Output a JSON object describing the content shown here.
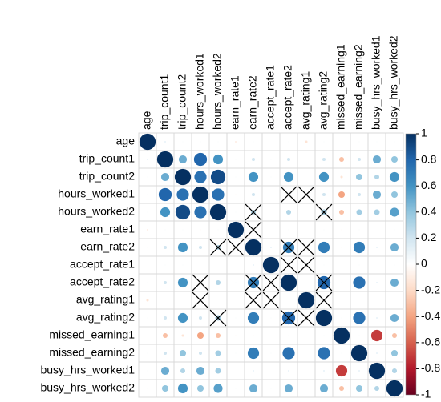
{
  "chart_data": {
    "type": "correlation",
    "labels": [
      "age",
      "trip_count1",
      "trip_count2",
      "hours_worked1",
      "hours_worked2",
      "earn_rate1",
      "earn_rate2",
      "accept_rate1",
      "accept_rate2",
      "avg_rating1",
      "avg_rating2",
      "missed_earning1",
      "missed_earning2",
      "busy_hrs_worked1",
      "busy_hrs_worked2"
    ],
    "matrix": [
      [
        1,
        0.1,
        0.05,
        0.05,
        0.05,
        -0.1,
        0.05,
        0.02,
        0.05,
        -0.15,
        0.05,
        0.02,
        0.05,
        0.05,
        0.05
      ],
      [
        0.1,
        1,
        0.5,
        0.8,
        0.6,
        0.05,
        0.2,
        0.05,
        0.2,
        0.02,
        0.2,
        -0.3,
        0.2,
        0.5,
        0.4
      ],
      [
        0.05,
        0.5,
        1,
        0.75,
        0.9,
        0.05,
        0.6,
        0.05,
        0.6,
        0.02,
        0.6,
        -0.15,
        0.4,
        0.3,
        0.6
      ],
      [
        0.05,
        0.8,
        0.75,
        1,
        0.75,
        -0.05,
        0.2,
        0.02,
        0.05,
        0.05,
        0.2,
        -0.4,
        0.2,
        0.5,
        0.4
      ],
      [
        0.05,
        0.6,
        0.9,
        0.75,
        1,
        0.05,
        0.3,
        0.02,
        0.3,
        0.02,
        0.35,
        -0.3,
        0.35,
        0.35,
        0.55
      ],
      [
        -0.1,
        0.05,
        0.05,
        -0.05,
        0.05,
        1,
        0.1,
        0.02,
        0.05,
        0.02,
        0.05,
        -0.05,
        0.05,
        0.02,
        0.05
      ],
      [
        0.05,
        0.2,
        0.6,
        0.2,
        0.3,
        0.1,
        1,
        0.1,
        0.7,
        0.02,
        0.7,
        -0.05,
        0.7,
        0.1,
        0.5
      ],
      [
        0.02,
        0.05,
        0.05,
        0.02,
        0.02,
        0.02,
        0.1,
        1,
        0.05,
        0.02,
        0.05,
        0.02,
        0.05,
        0.02,
        0.05
      ],
      [
        0.05,
        0.2,
        0.6,
        0.05,
        0.3,
        0.05,
        0.7,
        0.05,
        1,
        0.02,
        0.8,
        0.05,
        0.75,
        0.1,
        0.5
      ],
      [
        -0.15,
        0.02,
        0.02,
        0.05,
        0.02,
        0.02,
        0.02,
        0.02,
        0.02,
        1,
        0.05,
        0.02,
        0.02,
        0.02,
        0.02
      ],
      [
        0.05,
        0.2,
        0.6,
        0.2,
        0.35,
        0.05,
        0.7,
        0.05,
        0.8,
        0.05,
        1,
        0.05,
        0.75,
        0.1,
        0.5
      ],
      [
        0.02,
        -0.3,
        -0.15,
        -0.4,
        -0.3,
        -0.05,
        -0.05,
        0.02,
        0.05,
        0.02,
        0.05,
        1,
        0.05,
        -0.7,
        -0.3
      ],
      [
        0.05,
        0.2,
        0.4,
        0.2,
        0.35,
        0.05,
        0.7,
        0.05,
        0.75,
        0.02,
        0.75,
        0.05,
        1,
        0.1,
        0.4
      ],
      [
        0.05,
        0.5,
        0.3,
        0.5,
        0.35,
        0.02,
        0.1,
        0.02,
        0.1,
        0.02,
        0.1,
        -0.7,
        0.1,
        1,
        0.3
      ],
      [
        0.05,
        0.4,
        0.6,
        0.4,
        0.55,
        0.05,
        0.5,
        0.05,
        0.5,
        0.02,
        0.5,
        -0.3,
        0.4,
        0.3,
        1
      ]
    ],
    "insignificant": [
      [
        3,
        8
      ],
      [
        3,
        9
      ],
      [
        4,
        6
      ],
      [
        4,
        10
      ],
      [
        5,
        6
      ],
      [
        6,
        4
      ],
      [
        6,
        5
      ],
      [
        6,
        8
      ],
      [
        6,
        9
      ],
      [
        7,
        8
      ],
      [
        7,
        9
      ],
      [
        8,
        3
      ],
      [
        8,
        6
      ],
      [
        8,
        7
      ],
      [
        8,
        10
      ],
      [
        9,
        3
      ],
      [
        9,
        6
      ],
      [
        9,
        7
      ],
      [
        9,
        10
      ],
      [
        10,
        4
      ],
      [
        10,
        8
      ],
      [
        10,
        9
      ]
    ],
    "colorbar_lim": [
      -1,
      1
    ],
    "colorbar_ticks": [
      1,
      0.8,
      0.6,
      0.4,
      0.2,
      0,
      -0.2,
      -0.4,
      -0.6,
      -0.8,
      -1
    ]
  }
}
